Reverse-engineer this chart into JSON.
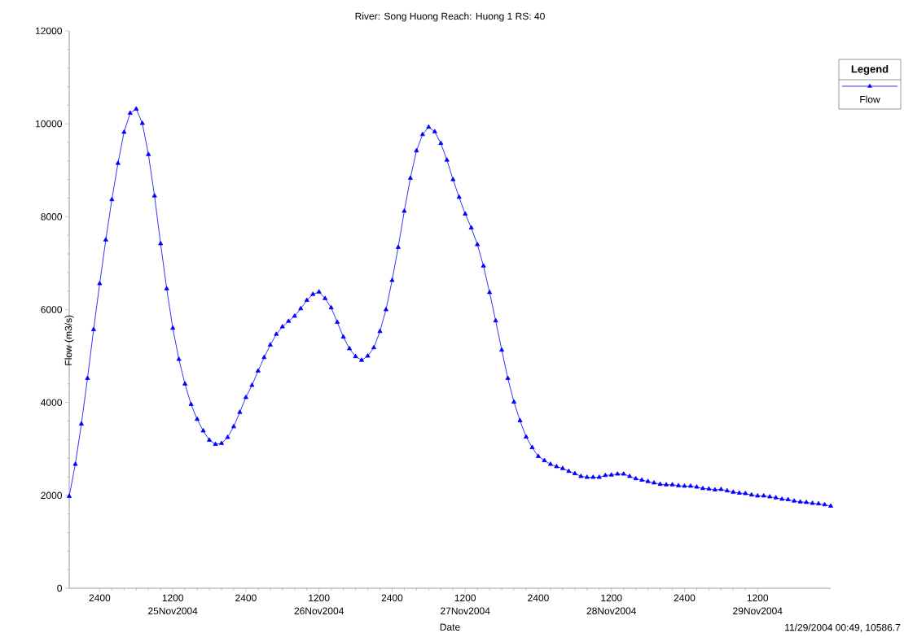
{
  "chart_data": {
    "type": "line",
    "title": "River: Song Huong  Reach: Huong 1  RS: 40",
    "xlabel": "Date",
    "ylabel": "Flow (m3/s)",
    "legend_title": "Legend",
    "legend": "top right",
    "marker": "triangle",
    "x": [
      "2004-11-24T19:00",
      "2004-11-24T20:00",
      "2004-11-24T21:00",
      "2004-11-24T22:00",
      "2004-11-24T23:00",
      "2004-11-25T00:00",
      "2004-11-25T01:00",
      "2004-11-25T02:00",
      "2004-11-25T03:00",
      "2004-11-25T04:00",
      "2004-11-25T05:00",
      "2004-11-25T06:00",
      "2004-11-25T07:00",
      "2004-11-25T08:00",
      "2004-11-25T09:00",
      "2004-11-25T10:00",
      "2004-11-25T11:00",
      "2004-11-25T12:00",
      "2004-11-25T13:00",
      "2004-11-25T14:00",
      "2004-11-25T15:00",
      "2004-11-25T16:00",
      "2004-11-25T17:00",
      "2004-11-25T18:00",
      "2004-11-25T19:00",
      "2004-11-25T20:00",
      "2004-11-25T21:00",
      "2004-11-25T22:00",
      "2004-11-25T23:00",
      "2004-11-26T00:00",
      "2004-11-26T01:00",
      "2004-11-26T02:00",
      "2004-11-26T03:00",
      "2004-11-26T04:00",
      "2004-11-26T05:00",
      "2004-11-26T06:00",
      "2004-11-26T07:00",
      "2004-11-26T08:00",
      "2004-11-26T09:00",
      "2004-11-26T10:00",
      "2004-11-26T11:00",
      "2004-11-26T12:00",
      "2004-11-26T13:00",
      "2004-11-26T14:00",
      "2004-11-26T15:00",
      "2004-11-26T16:00",
      "2004-11-26T17:00",
      "2004-11-26T18:00",
      "2004-11-26T19:00",
      "2004-11-26T20:00",
      "2004-11-26T21:00",
      "2004-11-26T22:00",
      "2004-11-26T23:00",
      "2004-11-27T00:00",
      "2004-11-27T01:00",
      "2004-11-27T02:00",
      "2004-11-27T03:00",
      "2004-11-27T04:00",
      "2004-11-27T05:00",
      "2004-11-27T06:00",
      "2004-11-27T07:00",
      "2004-11-27T08:00",
      "2004-11-27T09:00",
      "2004-11-27T10:00",
      "2004-11-27T11:00",
      "2004-11-27T12:00",
      "2004-11-27T13:00",
      "2004-11-27T14:00",
      "2004-11-27T15:00",
      "2004-11-27T16:00",
      "2004-11-27T17:00",
      "2004-11-27T18:00",
      "2004-11-27T19:00",
      "2004-11-27T20:00",
      "2004-11-27T21:00",
      "2004-11-27T22:00",
      "2004-11-27T23:00",
      "2004-11-28T00:00",
      "2004-11-28T01:00",
      "2004-11-28T02:00",
      "2004-11-28T03:00",
      "2004-11-28T04:00",
      "2004-11-28T05:00",
      "2004-11-28T06:00",
      "2004-11-28T07:00",
      "2004-11-28T08:00",
      "2004-11-28T09:00",
      "2004-11-28T10:00",
      "2004-11-28T11:00",
      "2004-11-28T12:00",
      "2004-11-28T13:00",
      "2004-11-28T14:00",
      "2004-11-28T15:00",
      "2004-11-28T16:00",
      "2004-11-28T17:00",
      "2004-11-28T18:00",
      "2004-11-28T19:00",
      "2004-11-28T20:00",
      "2004-11-28T21:00",
      "2004-11-28T22:00",
      "2004-11-28T23:00",
      "2004-11-29T00:00",
      "2004-11-29T01:00",
      "2004-11-29T02:00",
      "2004-11-29T03:00",
      "2004-11-29T04:00",
      "2004-11-29T05:00",
      "2004-11-29T06:00",
      "2004-11-29T07:00",
      "2004-11-29T08:00",
      "2004-11-29T09:00",
      "2004-11-29T10:00",
      "2004-11-29T11:00",
      "2004-11-29T12:00",
      "2004-11-29T13:00",
      "2004-11-29T14:00",
      "2004-11-29T15:00",
      "2004-11-29T16:00",
      "2004-11-29T17:00",
      "2004-11-29T18:00",
      "2004-11-29T19:00",
      "2004-11-29T20:00",
      "2004-11-29T21:00",
      "2004-11-29T22:00",
      "2004-11-29T23:00",
      "2004-11-30T00:00"
    ],
    "series": [
      {
        "name": "Flow",
        "color": "#0000ff",
        "values": [
          1980,
          2670,
          3540,
          4520,
          5570,
          6560,
          7500,
          8370,
          9150,
          9820,
          10230,
          10320,
          10010,
          9340,
          8450,
          7420,
          6450,
          5600,
          4930,
          4400,
          3960,
          3640,
          3390,
          3190,
          3100,
          3120,
          3250,
          3480,
          3790,
          4110,
          4370,
          4680,
          4970,
          5240,
          5470,
          5630,
          5750,
          5860,
          6020,
          6200,
          6330,
          6380,
          6240,
          6040,
          5730,
          5410,
          5160,
          4990,
          4910,
          5000,
          5180,
          5530,
          6000,
          6630,
          7340,
          8120,
          8830,
          9420,
          9770,
          9930,
          9830,
          9580,
          9220,
          8800,
          8420,
          8060,
          7760,
          7400,
          6940,
          6370,
          5760,
          5130,
          4520,
          4010,
          3610,
          3260,
          3030,
          2840,
          2750,
          2670,
          2620,
          2580,
          2520,
          2470,
          2410,
          2390,
          2390,
          2390,
          2430,
          2440,
          2460,
          2460,
          2410,
          2360,
          2330,
          2300,
          2270,
          2240,
          2230,
          2230,
          2210,
          2200,
          2200,
          2180,
          2150,
          2140,
          2120,
          2130,
          2100,
          2070,
          2050,
          2040,
          2010,
          1990,
          1990,
          1970,
          1950,
          1920,
          1910,
          1880,
          1860,
          1850,
          1830,
          1820,
          1800,
          1770
        ]
      }
    ],
    "xlim": [
      "2004-11-24T19:00",
      "2004-11-30T00:00"
    ],
    "xticks": [
      {
        "value": "2004-11-25T00:00",
        "label": "2400"
      },
      {
        "value": "2004-11-25T12:00",
        "label": "1200"
      },
      {
        "value": "2004-11-26T00:00",
        "label": "2400"
      },
      {
        "value": "2004-11-26T12:00",
        "label": "1200"
      },
      {
        "value": "2004-11-27T00:00",
        "label": "2400"
      },
      {
        "value": "2004-11-27T12:00",
        "label": "1200"
      },
      {
        "value": "2004-11-28T00:00",
        "label": "2400"
      },
      {
        "value": "2004-11-28T12:00",
        "label": "1200"
      },
      {
        "value": "2004-11-29T00:00",
        "label": "2400"
      },
      {
        "value": "2004-11-29T12:00",
        "label": "1200"
      }
    ],
    "ylim": [
      0,
      12000
    ],
    "yticks": [
      0,
      2000,
      4000,
      6000,
      8000,
      10000,
      12000
    ],
    "annotations": [
      "25Nov2004",
      "26Nov2004",
      "27Nov2004",
      "28Nov2004",
      "29Nov2004",
      "11/29/2004 00:49, 10586.7"
    ]
  }
}
